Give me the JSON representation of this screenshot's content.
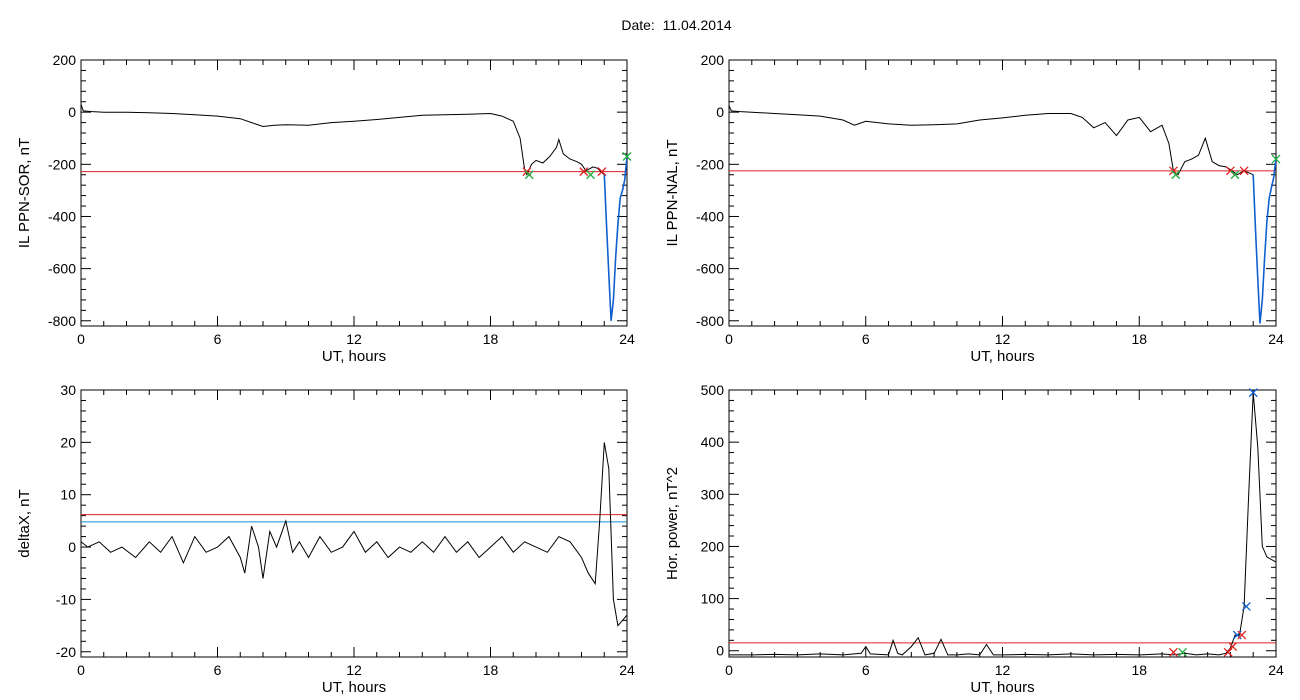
{
  "figure": {
    "date_label": "Date:",
    "date_value": "11.04.2014"
  },
  "chart_data": [
    {
      "type": "line",
      "ylabel": "IL PPN-SOR, nT",
      "xlabel": "UT, hours",
      "xlim": [
        0,
        24
      ],
      "ylim": [
        -820,
        200
      ],
      "xticks": [
        0,
        6,
        12,
        18,
        24
      ],
      "yticks": [
        -800,
        -600,
        -400,
        -200,
        0,
        200
      ],
      "grid": false,
      "threshold_lines": [
        {
          "value": -228,
          "color": "#e02020"
        }
      ],
      "series": [
        {
          "color": "#000000",
          "x": [
            0,
            0.1,
            0.5,
            1,
            2,
            3,
            4,
            5,
            6,
            7,
            7.5,
            8,
            8.5,
            9,
            10,
            11,
            12,
            13,
            14,
            15,
            16,
            17,
            18,
            18.5,
            19,
            19.3,
            19.5,
            19.6,
            19.8,
            20,
            20.3,
            20.6,
            20.9,
            21,
            21.2,
            21.5,
            21.8,
            22,
            22.2,
            22.5,
            22.7,
            23
          ],
          "y": [
            30,
            5,
            2,
            0,
            0,
            -2,
            -5,
            -10,
            -15,
            -25,
            -40,
            -55,
            -50,
            -48,
            -50,
            -40,
            -35,
            -28,
            -20,
            -12,
            -10,
            -8,
            -5,
            -15,
            -35,
            -100,
            -220,
            -240,
            -200,
            -185,
            -195,
            -170,
            -135,
            -105,
            -160,
            -180,
            -190,
            -200,
            -225,
            -210,
            -215,
            -240
          ]
        },
        {
          "color": "#1060d0",
          "x": [
            23,
            23.1,
            23.2,
            23.3,
            23.4,
            23.5,
            23.6,
            23.7,
            23.8,
            23.9,
            24
          ],
          "y": [
            -240,
            -430,
            -620,
            -800,
            -720,
            -560,
            -430,
            -330,
            -300,
            -260,
            -170
          ]
        }
      ],
      "markers": [
        {
          "x": 19.6,
          "y": -228,
          "color": "#e02020"
        },
        {
          "x": 19.7,
          "y": -240,
          "color": "#20b040"
        },
        {
          "x": 22.1,
          "y": -228,
          "color": "#e02020"
        },
        {
          "x": 22.4,
          "y": -240,
          "color": "#20b040"
        },
        {
          "x": 22.9,
          "y": -228,
          "color": "#e02020"
        },
        {
          "x": 24,
          "y": -170,
          "color": "#20b040"
        }
      ]
    },
    {
      "type": "line",
      "ylabel": "IL PPN-NAL, nT",
      "xlabel": "UT, hours",
      "xlim": [
        0,
        24
      ],
      "ylim": [
        -820,
        200
      ],
      "xticks": [
        0,
        6,
        12,
        18,
        24
      ],
      "yticks": [
        -800,
        -600,
        -400,
        -200,
        0,
        200
      ],
      "grid": false,
      "threshold_lines": [
        {
          "value": -225,
          "color": "#e02020"
        }
      ],
      "series": [
        {
          "color": "#000000",
          "x": [
            0,
            0.1,
            0.5,
            1,
            2,
            3,
            4,
            5,
            5.5,
            6,
            7,
            8,
            9,
            10,
            11,
            12,
            13,
            14,
            15,
            15.5,
            16,
            16.5,
            17,
            17.5,
            18,
            18.5,
            19,
            19.3,
            19.5,
            19.7,
            20,
            20.3,
            20.6,
            20.9,
            21.2,
            21.5,
            21.8,
            22,
            22.3,
            22.6,
            23
          ],
          "y": [
            25,
            5,
            2,
            0,
            -5,
            -10,
            -15,
            -30,
            -50,
            -35,
            -45,
            -50,
            -48,
            -45,
            -30,
            -22,
            -12,
            -5,
            -5,
            -20,
            -60,
            -40,
            -90,
            -30,
            -20,
            -75,
            -50,
            -120,
            -225,
            -240,
            -190,
            -180,
            -165,
            -100,
            -190,
            -205,
            -210,
            -220,
            -240,
            -225,
            -240
          ]
        },
        {
          "color": "#1060d0",
          "x": [
            23,
            23.1,
            23.2,
            23.3,
            23.4,
            23.5,
            23.6,
            23.7,
            23.8,
            23.9,
            24
          ],
          "y": [
            -240,
            -450,
            -640,
            -810,
            -720,
            -560,
            -420,
            -330,
            -290,
            -250,
            -180
          ]
        }
      ],
      "markers": [
        {
          "x": 19.5,
          "y": -225,
          "color": "#e02020"
        },
        {
          "x": 19.6,
          "y": -240,
          "color": "#20b040"
        },
        {
          "x": 22.0,
          "y": -225,
          "color": "#e02020"
        },
        {
          "x": 22.2,
          "y": -240,
          "color": "#20b040"
        },
        {
          "x": 22.6,
          "y": -225,
          "color": "#e02020"
        },
        {
          "x": 24,
          "y": -180,
          "color": "#20b040"
        }
      ]
    },
    {
      "type": "line",
      "ylabel": "deltaX, nT",
      "xlabel": "UT, hours",
      "xlim": [
        0,
        24
      ],
      "ylim": [
        -21,
        30
      ],
      "xticks": [
        0,
        6,
        12,
        18,
        24
      ],
      "yticks": [
        -20,
        -10,
        0,
        10,
        20,
        30
      ],
      "grid": false,
      "threshold_lines": [
        {
          "value": 6.2,
          "color": "#e02020"
        },
        {
          "value": 4.8,
          "color": "#1090d0"
        }
      ],
      "series": [
        {
          "color": "#000000",
          "x": [
            0,
            0.3,
            0.8,
            1.3,
            1.8,
            2.4,
            3,
            3.5,
            4,
            4.5,
            5,
            5.5,
            6,
            6.5,
            7,
            7.2,
            7.5,
            7.8,
            8,
            8.3,
            8.6,
            9,
            9.3,
            9.6,
            10,
            10.5,
            11,
            11.5,
            12,
            12.5,
            13,
            13.5,
            14,
            14.5,
            15,
            15.5,
            16,
            16.5,
            17,
            17.5,
            18,
            18.5,
            19,
            19.5,
            20,
            20.5,
            21,
            21.5,
            22,
            22.3,
            22.6,
            22.8,
            23,
            23.2,
            23.4,
            23.6,
            23.8,
            24
          ],
          "y": [
            1,
            0,
            1,
            -1,
            0,
            -2,
            1,
            -1,
            2,
            -3,
            2,
            -1,
            0,
            2,
            -2,
            -5,
            4,
            0,
            -6,
            3,
            0,
            5,
            -1,
            1,
            -2,
            2,
            -1,
            0,
            3,
            -1,
            1,
            -2,
            0,
            -1,
            1,
            -1,
            2,
            -1,
            1,
            -2,
            0,
            2,
            -1,
            1,
            0,
            -1,
            2,
            1,
            -2,
            -5,
            -7,
            5,
            20,
            15,
            -10,
            -15,
            -14,
            -13
          ]
        }
      ],
      "markers": []
    },
    {
      "type": "line",
      "ylabel": "Hor. power, nT^2",
      "xlabel": "UT, hours",
      "xlim": [
        0,
        24
      ],
      "ylim": [
        -12,
        500
      ],
      "xticks": [
        0,
        6,
        12,
        18,
        24
      ],
      "yticks": [
        0,
        100,
        200,
        300,
        400,
        500
      ],
      "grid": false,
      "threshold_lines": [
        {
          "value": 15,
          "color": "#e02020"
        }
      ],
      "series": [
        {
          "color": "#000000",
          "x": [
            0,
            1,
            2,
            3,
            4,
            5,
            5.8,
            6,
            6.2,
            7,
            7.2,
            7.4,
            7.6,
            8,
            8.3,
            8.6,
            9,
            9.3,
            9.6,
            10,
            10.5,
            11,
            11.3,
            11.6,
            12,
            13,
            14,
            15,
            16,
            17,
            18,
            19,
            19.5,
            20,
            20.5,
            21,
            21.5,
            21.8,
            22,
            22.2,
            22.4,
            22.6,
            22.8,
            23,
            23.2,
            23.4,
            23.6,
            23.8,
            24
          ],
          "y": [
            -8,
            -8,
            -7,
            -8,
            -6,
            -8,
            -5,
            8,
            -6,
            -8,
            20,
            -5,
            -8,
            8,
            25,
            -8,
            -5,
            22,
            -8,
            -8,
            -6,
            -8,
            12,
            -8,
            -8,
            -7,
            -8,
            -6,
            -8,
            -7,
            -8,
            -6,
            -8,
            -5,
            -8,
            -6,
            -8,
            -5,
            5,
            30,
            30,
            85,
            300,
            495,
            390,
            200,
            180,
            175,
            170
          ]
        }
      ],
      "markers": [
        {
          "x": 19.5,
          "y": -3,
          "color": "#e02020"
        },
        {
          "x": 19.9,
          "y": -3,
          "color": "#20b040"
        },
        {
          "x": 21.9,
          "y": -3,
          "color": "#e02020"
        },
        {
          "x": 22.1,
          "y": 8,
          "color": "#e02020"
        },
        {
          "x": 22.3,
          "y": 30,
          "color": "#1060d0"
        },
        {
          "x": 22.5,
          "y": 30,
          "color": "#e02020"
        },
        {
          "x": 22.7,
          "y": 85,
          "color": "#1060d0"
        },
        {
          "x": 23.0,
          "y": 495,
          "color": "#1060d0"
        }
      ]
    }
  ]
}
